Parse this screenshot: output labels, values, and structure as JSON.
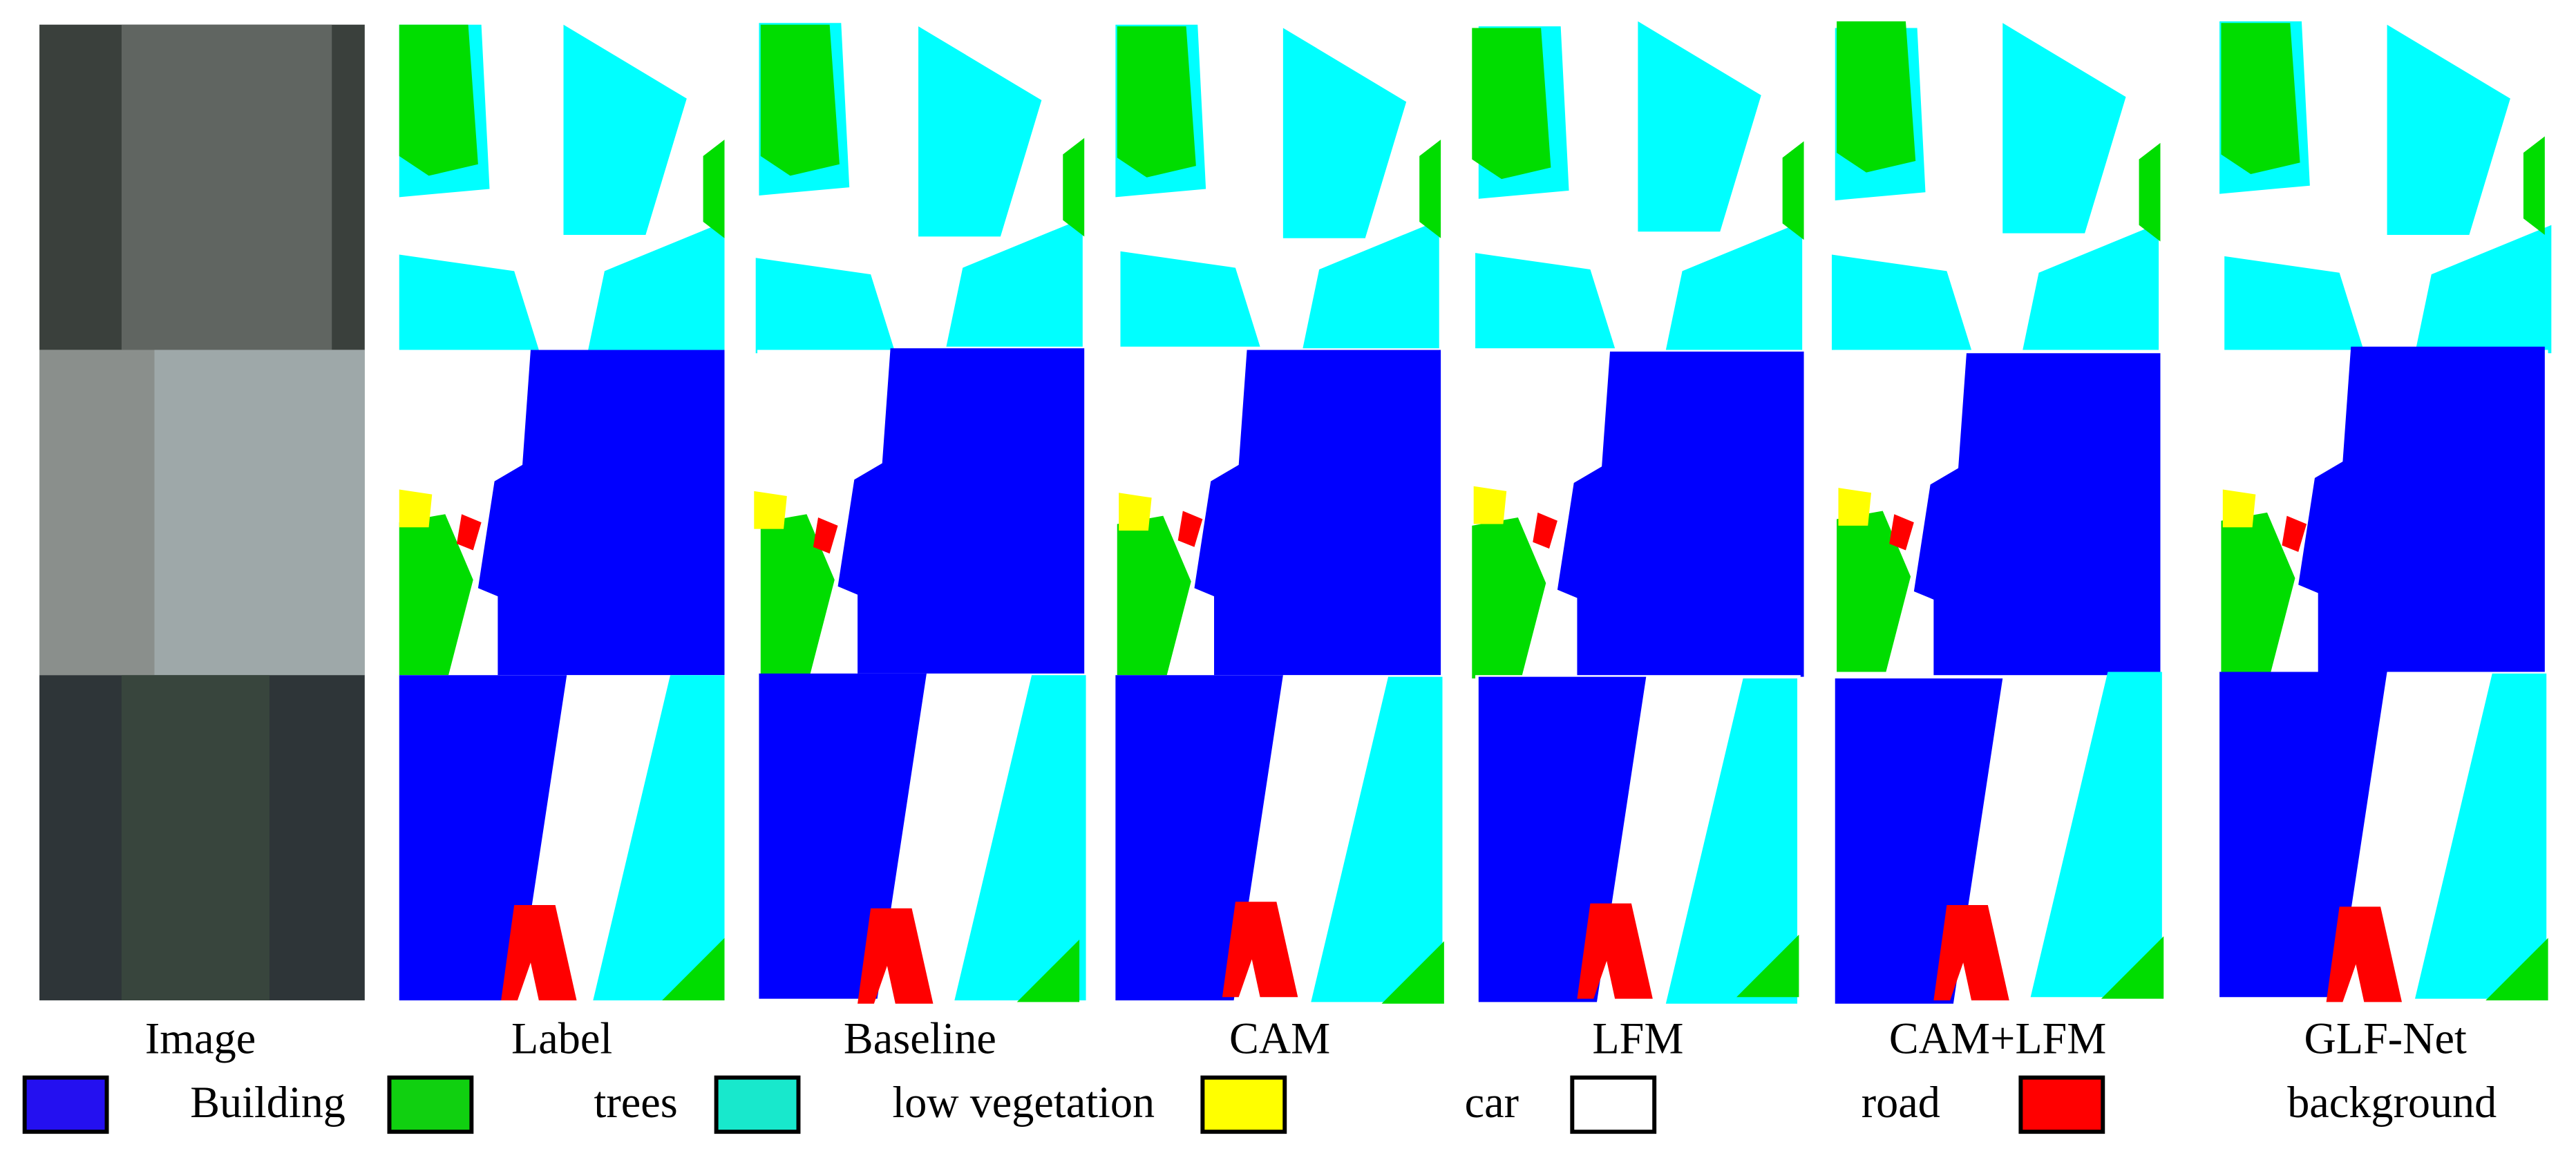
{
  "columns": [
    "Image",
    "Label",
    "Baseline",
    "CAM",
    "LFM",
    "CAM+LFM",
    "GLF-Net"
  ],
  "legend": [
    {
      "label": "Building",
      "color": "#2410f0"
    },
    {
      "label": "trees",
      "color": "#10d010"
    },
    {
      "label": "low vegetation",
      "color": "#18e8cc"
    },
    {
      "label": "car",
      "color": "#ffff00"
    },
    {
      "label": "road",
      "color": "#ffffff"
    },
    {
      "label": "background",
      "color": "#ff0000"
    }
  ]
}
